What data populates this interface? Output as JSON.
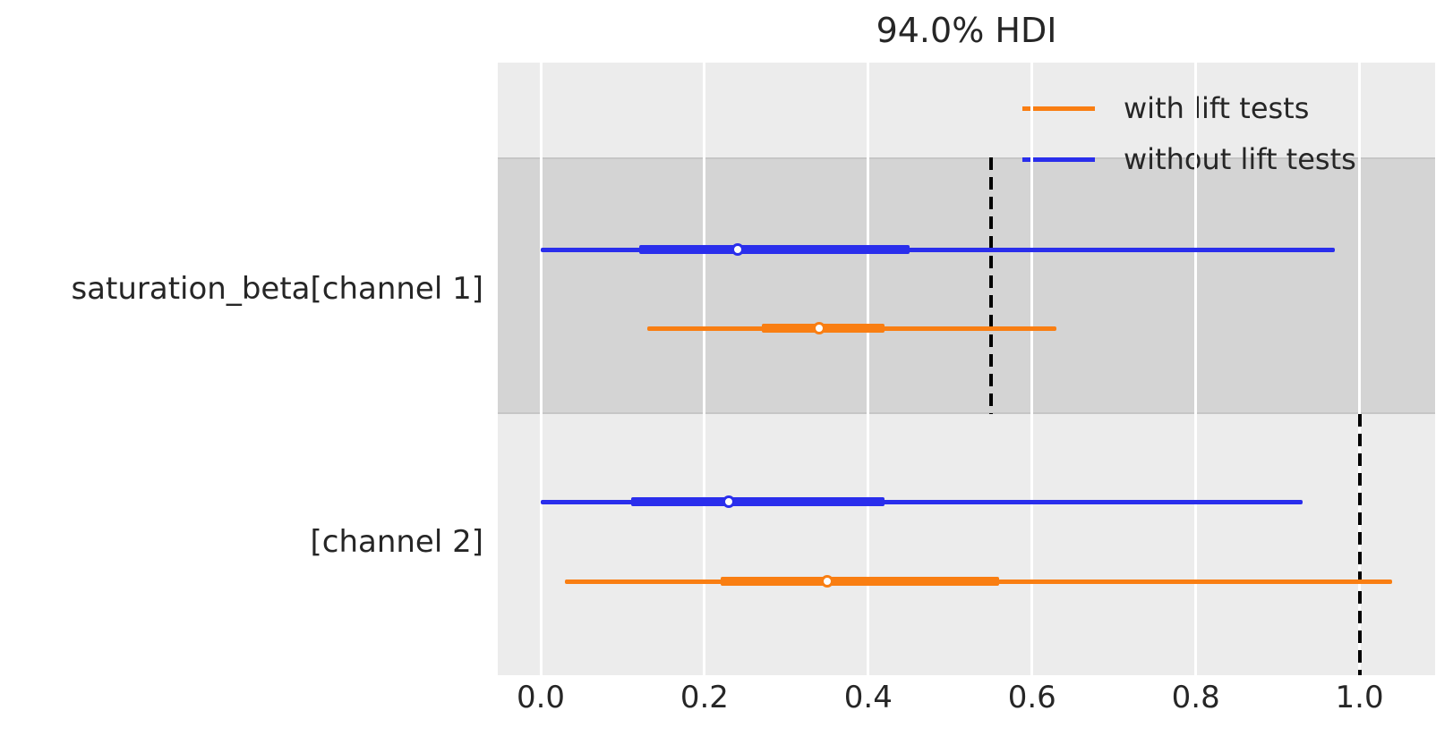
{
  "title": "94.0% HDI",
  "colors": {
    "with_lift_tests": "#f97e12",
    "without_lift_tests": "#2a2eec",
    "text": "#262626",
    "plot_background": "#ececec",
    "shaded_band": "#d4d4d4",
    "gridline": "#ffffff",
    "reference_line": "#000000"
  },
  "legend": {
    "items": [
      {
        "label": "with lift tests",
        "color": "#f97e12"
      },
      {
        "label": "without lift tests",
        "color": "#2a2eec"
      }
    ]
  },
  "y_axis": {
    "labels": [
      "saturation_beta[channel 1]",
      "[channel 2]"
    ]
  },
  "x_axis": {
    "tick_labels": [
      "0.0",
      "0.2",
      "0.4",
      "0.6",
      "0.8",
      "1.0"
    ],
    "tick_values": [
      0,
      0.2,
      0.4,
      0.6,
      0.8,
      1.0
    ]
  },
  "chart_data": {
    "type": "forest",
    "title": "94.0% HDI",
    "hdi_probability": "94.0%",
    "xlim": [
      -0.053,
      1.092
    ],
    "x_ticks": [
      0,
      0.2,
      0.4,
      0.6,
      0.8,
      1.0
    ],
    "grid": true,
    "legend_position": "upper right",
    "rows": [
      {
        "label": "saturation_beta[channel 1]",
        "shaded": true,
        "reference_line_x": 0.55,
        "estimates": [
          {
            "series": "without lift tests",
            "color": "#2a2eec",
            "hdi_94": [
              0.0,
              0.97
            ],
            "hdi_50": [
              0.12,
              0.45
            ],
            "point": 0.24
          },
          {
            "series": "with lift tests",
            "color": "#f97e12",
            "hdi_94": [
              0.13,
              0.63
            ],
            "hdi_50": [
              0.27,
              0.42
            ],
            "point": 0.34
          }
        ]
      },
      {
        "label": "[channel 2]",
        "shaded": false,
        "reference_line_x": 1.0,
        "estimates": [
          {
            "series": "without lift tests",
            "color": "#2a2eec",
            "hdi_94": [
              0.0,
              0.93
            ],
            "hdi_50": [
              0.11,
              0.42
            ],
            "point": 0.23
          },
          {
            "series": "with lift tests",
            "color": "#f97e12",
            "hdi_94": [
              0.03,
              1.04
            ],
            "hdi_50": [
              0.22,
              0.56
            ],
            "point": 0.35
          }
        ]
      }
    ]
  }
}
